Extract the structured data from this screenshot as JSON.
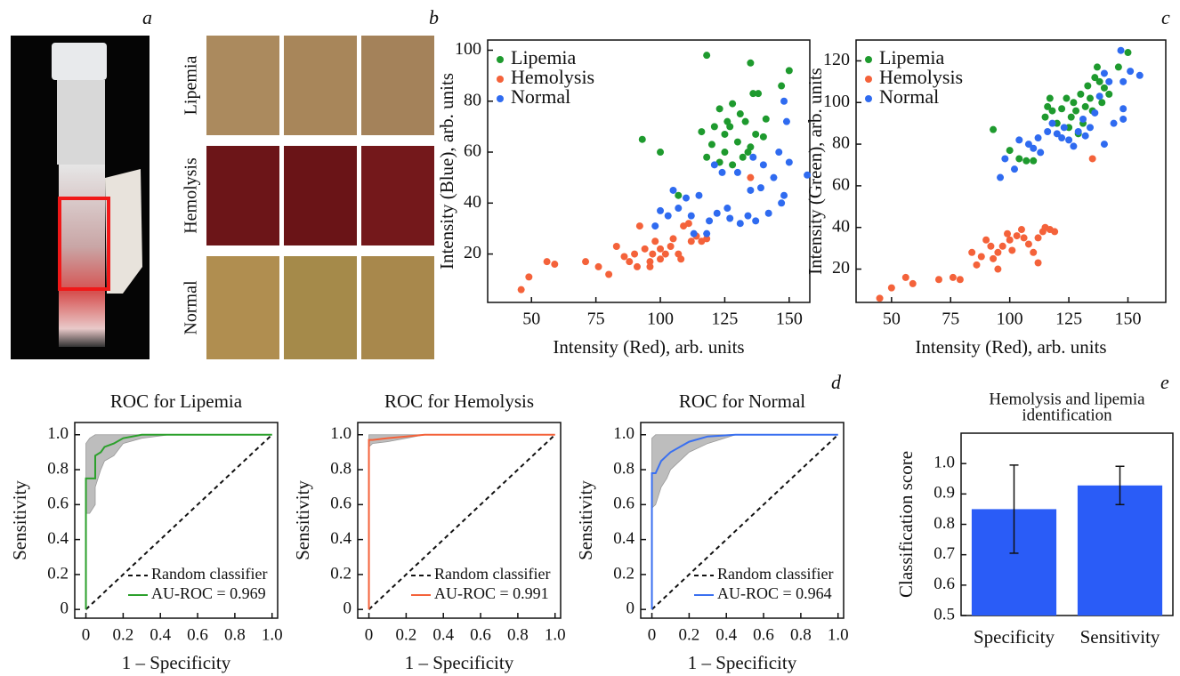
{
  "panel_labels": [
    "a",
    "b",
    "c",
    "d",
    "e"
  ],
  "photo_rows": [
    "Lipemia",
    "Hemolysis",
    "Normal"
  ],
  "chart_data": [
    {
      "type": "scatter",
      "xlabel": "Intensity (Red), arb. units",
      "ylabel": "Intensity (Blue), arb. units",
      "xlim": [
        33,
        158
      ],
      "ylim": [
        1,
        104
      ],
      "xticks": [
        50,
        75,
        100,
        125,
        150
      ],
      "yticks": [
        20,
        40,
        60,
        80,
        100
      ],
      "legend": "upper left",
      "series": [
        {
          "name": "Lipemia",
          "color": "#1e9a2e",
          "x": [
            118,
            135,
            150,
            93,
            100,
            147,
            138,
            136,
            128,
            123,
            131,
            126,
            133,
            127,
            121,
            116,
            125,
            137,
            130,
            120,
            135,
            134,
            125,
            123,
            128,
            118,
            132,
            107,
            141,
            140
          ],
          "values": [
            98,
            95,
            92,
            65,
            60,
            86,
            83,
            83,
            79,
            77,
            75,
            72,
            72,
            70,
            70,
            68,
            67,
            67,
            64,
            63,
            62,
            60,
            60,
            56,
            55,
            58,
            58,
            43,
            73,
            66
          ]
        },
        {
          "name": "Hemolysis",
          "color": "#f4623a",
          "x": [
            46,
            49,
            56,
            59,
            71,
            76,
            80,
            83,
            86,
            88,
            90,
            91,
            92,
            94,
            96,
            97,
            98,
            100,
            102,
            104,
            105,
            107,
            109,
            111,
            112,
            114,
            116,
            118,
            135,
            96,
            100,
            108
          ],
          "values": [
            6,
            11,
            17,
            16,
            17,
            15,
            12,
            23,
            19,
            17,
            20,
            15,
            31,
            22,
            17,
            20,
            25,
            22,
            20,
            23,
            26,
            20,
            31,
            32,
            25,
            27,
            25,
            26,
            50,
            15,
            18,
            18
          ]
        },
        {
          "name": "Normal",
          "color": "#2f6bf0",
          "x": [
            157,
            149,
            148,
            146,
            150,
            136,
            140,
            139,
            130,
            135,
            124,
            121,
            126,
            119,
            115,
            110,
            105,
            103,
            100,
            98,
            112,
            118,
            122,
            127,
            131,
            137,
            142,
            147,
            148,
            144,
            134,
            113,
            107
          ],
          "values": [
            51,
            72,
            80,
            60,
            56,
            58,
            55,
            46,
            52,
            45,
            52,
            55,
            38,
            33,
            43,
            42,
            45,
            35,
            37,
            31,
            35,
            28,
            36,
            34,
            32,
            33,
            36,
            40,
            43,
            50,
            35,
            28,
            38
          ]
        }
      ]
    },
    {
      "type": "scatter",
      "xlabel": "Intensity (Red), arb. units",
      "ylabel": "Intensity (Green), arb. units",
      "xlim": [
        35,
        166
      ],
      "ylim": [
        4,
        130
      ],
      "xticks": [
        50,
        75,
        100,
        125,
        150
      ],
      "yticks": [
        20,
        40,
        60,
        80,
        100,
        120
      ],
      "legend": "upper left",
      "series": [
        {
          "name": "Lipemia",
          "color": "#1e9a2e",
          "x": [
            93,
            100,
            104,
            107,
            110,
            115,
            116,
            117,
            118,
            120,
            122,
            124,
            126,
            127,
            128,
            130,
            132,
            133,
            134,
            135,
            136,
            137,
            138,
            140,
            142,
            146,
            150,
            131,
            129,
            125,
            139
          ],
          "values": [
            87,
            77,
            73,
            72,
            72,
            93,
            98,
            102,
            96,
            90,
            97,
            102,
            93,
            100,
            96,
            104,
            98,
            108,
            102,
            96,
            112,
            117,
            110,
            107,
            104,
            117,
            124,
            90,
            85,
            88,
            100
          ]
        },
        {
          "name": "Hemolysis",
          "color": "#f4623a",
          "x": [
            45,
            50,
            56,
            59,
            70,
            76,
            79,
            84,
            86,
            88,
            90,
            92,
            93,
            95,
            97,
            99,
            100,
            101,
            103,
            105,
            106,
            108,
            110,
            112,
            114,
            115,
            117,
            119,
            135,
            112,
            95
          ],
          "values": [
            6,
            11,
            16,
            13,
            15,
            16,
            15,
            28,
            22,
            26,
            34,
            31,
            25,
            28,
            31,
            37,
            34,
            29,
            36,
            39,
            35,
            32,
            28,
            35,
            38,
            40,
            39,
            38,
            73,
            23,
            20
          ]
        },
        {
          "name": "Normal",
          "color": "#2f6bf0",
          "x": [
            96,
            98,
            102,
            104,
            108,
            110,
            112,
            113,
            116,
            118,
            120,
            122,
            123,
            125,
            127,
            129,
            131,
            134,
            136,
            138,
            140,
            142,
            147,
            148,
            151,
            155,
            148,
            148,
            144,
            140,
            132
          ],
          "values": [
            64,
            73,
            68,
            82,
            80,
            78,
            83,
            76,
            86,
            90,
            85,
            83,
            88,
            82,
            79,
            86,
            92,
            88,
            95,
            103,
            114,
            110,
            125,
            110,
            115,
            113,
            97,
            92,
            90,
            80,
            84
          ]
        }
      ]
    },
    {
      "type": "roc",
      "title": "ROC for Lipemia",
      "xlabel": "1 – Specificity",
      "ylabel": "Sensitivity",
      "xlim": [
        -0.06,
        1.03
      ],
      "ylim": [
        -0.05,
        1.07
      ],
      "xticks": [
        0,
        0.2,
        0.4,
        0.6,
        0.8,
        {
          "value": 1,
          "label": "1.0"
        }
      ],
      "yticks": [
        0,
        0.2,
        0.4,
        0.6,
        0.8,
        {
          "value": 1,
          "label": "1.0"
        }
      ],
      "legend": "lower right",
      "series": [
        {
          "name": "Random classifier",
          "color": "#111111",
          "dashed": true,
          "x": [
            0,
            1
          ],
          "values": [
            0,
            1
          ]
        },
        {
          "name": "AU-ROC = 0.969",
          "color": "#2ca02c",
          "band_color": "#bdbdbd",
          "x": [
            0,
            0,
            0.02,
            0.05,
            0.05,
            0.08,
            0.1,
            0.15,
            0.2,
            0.3,
            0.45,
            1
          ],
          "values": [
            0,
            0.75,
            0.75,
            0.75,
            0.88,
            0.9,
            0.93,
            0.95,
            0.98,
            1,
            1,
            1
          ],
          "lower": [
            0,
            0.55,
            0.55,
            0.6,
            0.7,
            0.8,
            0.85,
            0.88,
            0.95,
            0.98,
            1,
            1
          ],
          "upper": [
            0,
            0.95,
            0.98,
            1,
            1,
            1,
            1,
            1,
            1,
            1,
            1,
            1
          ]
        }
      ]
    },
    {
      "type": "roc",
      "title": "ROC for Hemolysis",
      "xlabel": "1 – Specificity",
      "ylabel": "Sensitivity",
      "xlim": [
        -0.06,
        1.03
      ],
      "ylim": [
        -0.05,
        1.07
      ],
      "xticks": [
        0,
        0.2,
        0.4,
        0.6,
        0.8,
        {
          "value": 1,
          "label": "1.0"
        }
      ],
      "yticks": [
        0,
        0.2,
        0.4,
        0.6,
        0.8,
        {
          "value": 1,
          "label": "1.0"
        }
      ],
      "legend": "lower right",
      "series": [
        {
          "name": "Random classifier",
          "color": "#111111",
          "dashed": true,
          "x": [
            0,
            1
          ],
          "values": [
            0,
            1
          ]
        },
        {
          "name": "AU-ROC = 0.991",
          "color": "#f4623a",
          "band_color": "#bdbdbd",
          "x": [
            0,
            0,
            0.02,
            0.1,
            0.2,
            0.3,
            1
          ],
          "values": [
            0,
            0.97,
            0.97,
            0.98,
            0.99,
            1,
            1
          ],
          "lower": [
            0,
            0.93,
            0.95,
            0.96,
            0.98,
            1,
            1
          ],
          "upper": [
            0,
            1,
            1,
            1,
            1,
            1,
            1
          ]
        }
      ]
    },
    {
      "type": "roc",
      "title": "ROC for Normal",
      "xlabel": "1 – Specificity",
      "ylabel": "Sensitivity",
      "xlim": [
        -0.06,
        1.03
      ],
      "ylim": [
        -0.05,
        1.07
      ],
      "xticks": [
        0,
        0.2,
        0.4,
        0.6,
        0.8,
        {
          "value": 1,
          "label": "1.0"
        }
      ],
      "yticks": [
        0,
        0.2,
        0.4,
        0.6,
        0.8,
        {
          "value": 1,
          "label": "1.0"
        }
      ],
      "legend": "lower right",
      "series": [
        {
          "name": "Random classifier",
          "color": "#111111",
          "dashed": true,
          "x": [
            0,
            1
          ],
          "values": [
            0,
            1
          ]
        },
        {
          "name": "AU-ROC = 0.964",
          "color": "#3a70f0",
          "band_color": "#bdbdbd",
          "x": [
            0,
            0,
            0.02,
            0.05,
            0.08,
            0.1,
            0.15,
            0.2,
            0.3,
            0.45,
            1
          ],
          "values": [
            0,
            0.78,
            0.78,
            0.85,
            0.88,
            0.9,
            0.93,
            0.96,
            0.99,
            1,
            1
          ],
          "lower": [
            0,
            0.58,
            0.6,
            0.7,
            0.75,
            0.8,
            0.85,
            0.9,
            0.95,
            1,
            1
          ],
          "upper": [
            0,
            0.98,
            1,
            1,
            1,
            1,
            1,
            1,
            1,
            1,
            1
          ]
        }
      ]
    },
    {
      "type": "bar",
      "title": [
        "Hemolysis and lipemia",
        "identification"
      ],
      "ylabel": "Classification score",
      "categories": [
        "Specificity",
        "Sensitivity"
      ],
      "values": [
        0.85,
        0.928
      ],
      "errors": [
        0.145,
        0.063
      ],
      "color": "#2a5cf7",
      "ylim": [
        0.5,
        1.1
      ],
      "yticks": [
        0.5,
        0.6,
        0.7,
        0.8,
        0.9,
        {
          "value": 1,
          "label": "1.0"
        }
      ]
    }
  ]
}
